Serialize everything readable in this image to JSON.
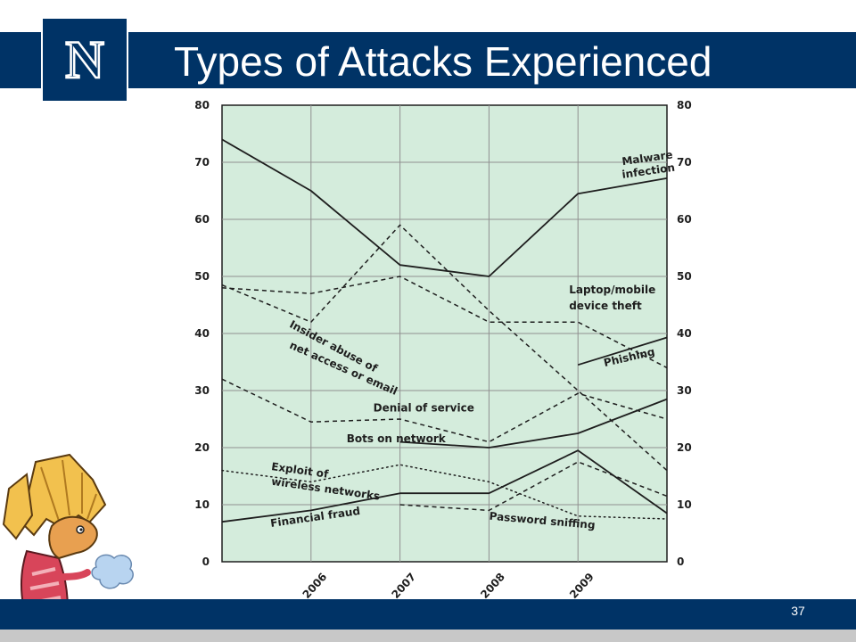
{
  "slide": {
    "title": "Types of Attacks Experienced",
    "logo_letter": "N",
    "slide_number": "37"
  },
  "colors": {
    "navy": "#003366",
    "plot_background": "#d4ecdc",
    "grid": "#909090",
    "line": "#1e1e1e"
  },
  "icons": {
    "logo": "nevada-block-n-logo",
    "mascot": "wolf-pack-dragon-mascot"
  },
  "chart_data": {
    "type": "line",
    "title": "",
    "xlabel": "",
    "ylabel": "",
    "x": [
      2005,
      2006,
      2007,
      2008,
      2009,
      2010
    ],
    "x_tick_labels": [
      "2006",
      "2007",
      "2008",
      "2009"
    ],
    "x_tick_values": [
      2006,
      2007,
      2008,
      2009
    ],
    "xlim": [
      2005,
      2010
    ],
    "ylim": [
      0,
      80
    ],
    "y_ticks": [
      0,
      10,
      20,
      30,
      40,
      50,
      60,
      70,
      80
    ],
    "y_tick_labels": [
      "0",
      "10",
      "20",
      "30",
      "40",
      "50",
      "60",
      "70",
      "80"
    ],
    "axes_on_both_sides": true,
    "grid": true,
    "legend": "none (series labelled inline)",
    "series": [
      {
        "name": "Malware infection",
        "style": "solid",
        "x": [
          2005,
          2006,
          2007,
          2008,
          2009,
          2010
        ],
        "values": [
          74,
          65,
          52,
          50,
          64.5,
          67.2
        ]
      },
      {
        "name": "Laptop/mobile device theft",
        "style": "dashed",
        "x": [
          2005,
          2006,
          2007,
          2008,
          2009,
          2010
        ],
        "values": [
          48,
          47,
          50,
          42,
          42,
          34
        ]
      },
      {
        "name": "Insider abuse of net access or email",
        "style": "dashed",
        "x": [
          2005,
          2006,
          2007,
          2008,
          2009,
          2010
        ],
        "values": [
          48.5,
          42,
          59,
          44,
          30,
          16
        ]
      },
      {
        "name": "Phishing",
        "style": "solid",
        "x": [
          2009,
          2010
        ],
        "values": [
          34.5,
          39.3
        ]
      },
      {
        "name": "Denial of service",
        "style": "dashed",
        "x": [
          2005,
          2006,
          2007,
          2008,
          2009,
          2010
        ],
        "values": [
          32,
          24.5,
          25,
          21,
          29.5,
          25
        ]
      },
      {
        "name": "Bots on network",
        "style": "solid",
        "x": [
          2007,
          2008,
          2009,
          2010
        ],
        "values": [
          21,
          20,
          22.5,
          28.5
        ]
      },
      {
        "name": "Exploit of wireless networks",
        "style": "dotted",
        "x": [
          2005,
          2006,
          2007,
          2008,
          2009,
          2010
        ],
        "values": [
          16,
          14,
          17,
          14,
          8,
          7.5
        ]
      },
      {
        "name": "Financial fraud",
        "style": "solid",
        "x": [
          2005,
          2006,
          2007,
          2008,
          2009,
          2010
        ],
        "values": [
          7,
          9,
          12,
          12,
          19.5,
          8.5
        ]
      },
      {
        "name": "Password sniffing",
        "style": "dashed",
        "x": [
          2007,
          2008,
          2009,
          2010
        ],
        "values": [
          10,
          9,
          17.5,
          11.5
        ]
      }
    ],
    "annotations": [
      {
        "text": "Malware",
        "x": 2009.5,
        "y": 69.5
      },
      {
        "text": "infection",
        "x": 2009.5,
        "y": 67.2
      },
      {
        "text": "Laptop/mobile",
        "x": 2008.9,
        "y": 47
      },
      {
        "text": "device theft",
        "x": 2008.9,
        "y": 44.2
      },
      {
        "text": "Insider abuse of",
        "x": 2005.75,
        "y": 41.2
      },
      {
        "text": "net access or email",
        "x": 2005.75,
        "y": 37.5
      },
      {
        "text": "Phishing",
        "x": 2009.3,
        "y": 34.2
      },
      {
        "text": "Denial of service",
        "x": 2006.7,
        "y": 26.3
      },
      {
        "text": "Bots on network",
        "x": 2006.4,
        "y": 20.9
      },
      {
        "text": "Exploit of",
        "x": 2005.55,
        "y": 16.1
      },
      {
        "text": "wireless networks",
        "x": 2005.55,
        "y": 13.5
      },
      {
        "text": "Financial fraud",
        "x": 2005.55,
        "y": 6.1
      },
      {
        "text": "Password sniffing",
        "x": 2008.0,
        "y": 7.4
      }
    ]
  }
}
